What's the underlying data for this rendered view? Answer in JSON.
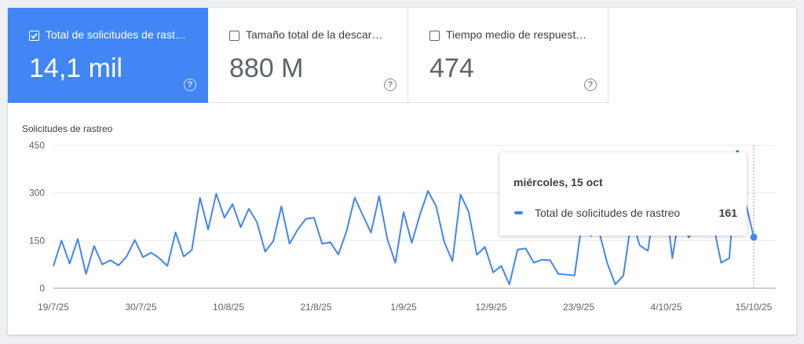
{
  "metrics": [
    {
      "label": "Total de solicitudes de rast…",
      "value": "14,1 mil",
      "checked": true
    },
    {
      "label": "Tamaño total de la descar…",
      "value": "880 M",
      "checked": false
    },
    {
      "label": "Tiempo medio de respuest…",
      "value": "474",
      "checked": false
    }
  ],
  "help_glyph": "?",
  "colors": {
    "accent": "#4285f4",
    "grid": "#e8eaed",
    "text": "#5f6368"
  },
  "chart_data": {
    "type": "line",
    "ylabel": "Solicitudes de rastreo",
    "ylim": [
      0,
      450
    ],
    "yticks": [
      0,
      150,
      300,
      450
    ],
    "x_start": "19/7/25",
    "x_end": "15/10/25",
    "xtick_labels": [
      "19/7/25",
      "30/7/25",
      "10/8/25",
      "21/8/25",
      "1/9/25",
      "12/9/25",
      "23/9/25",
      "4/10/25",
      "15/10/25"
    ],
    "series": [
      {
        "name": "Total de solicitudes de rastreo",
        "color": "#4285f4",
        "values": [
          70,
          150,
          78,
          155,
          45,
          133,
          75,
          88,
          72,
          100,
          152,
          98,
          112,
          95,
          70,
          176,
          100,
          120,
          285,
          185,
          298,
          222,
          265,
          192,
          250,
          208,
          115,
          148,
          258,
          140,
          185,
          218,
          222,
          140,
          145,
          106,
          180,
          285,
          230,
          175,
          290,
          155,
          80,
          240,
          143,
          230,
          306,
          258,
          145,
          85,
          295,
          240,
          105,
          130,
          50,
          70,
          12,
          122,
          125,
          80,
          90,
          88,
          45,
          43,
          40,
          225,
          165,
          180,
          80,
          12,
          40,
          220,
          135,
          118,
          290,
          310,
          95,
          255,
          160,
          195,
          190,
          205,
          80,
          95,
          430,
          270,
          161
        ]
      }
    ],
    "tooltip": {
      "date": "miércoles, 15 oct",
      "series": "Total de solicitudes de rastreo",
      "value": "161"
    },
    "grid": true
  }
}
